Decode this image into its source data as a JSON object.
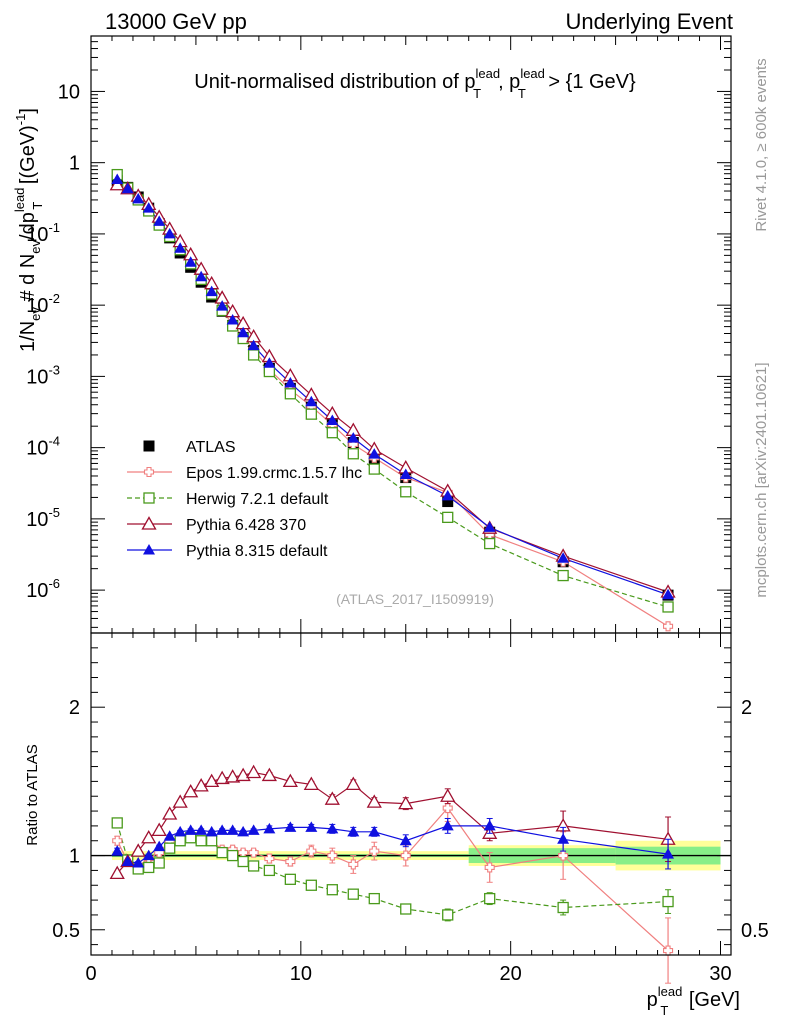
{
  "header": {
    "left": "13000 GeV pp",
    "right": "Underlying Event"
  },
  "side_notes": {
    "rivet": "Rivet 4.1.0, ≥ 600k events",
    "mcplots": "mcplots.cern.ch [arXiv:2401.10621]"
  },
  "chart_data": [
    {
      "type": "scatter",
      "panel": "main",
      "title_main": "Unit-normalised distribution of p",
      "title_sup1": "lead",
      "title_sub1": "T",
      "title_mid": ", p",
      "title_sup2": "lead",
      "title_sub2": "T",
      "title_end": " > {1 GeV}",
      "ylabel_a": "1/N",
      "ylabel_a_sub": "ev",
      "ylabel_b": " # d N",
      "ylabel_b_sub": "ev",
      "ylabel_c": "/dp",
      "ylabel_c_sup": "lead",
      "ylabel_c_sub": "T",
      "ylabel_d": " [(GeV)",
      "ylabel_d_sup": "-1",
      "ylabel_e": "]",
      "yscale": "log",
      "ylim": [
        2.5e-07,
        60
      ],
      "xlim": [
        0,
        30.5
      ],
      "yticks": [
        {
          "value": 1e-06,
          "base": "10",
          "exp": "-6"
        },
        {
          "value": 1e-05,
          "base": "10",
          "exp": "-5"
        },
        {
          "value": 0.0001,
          "base": "10",
          "exp": "-4"
        },
        {
          "value": 0.001,
          "base": "10",
          "exp": "-3"
        },
        {
          "value": 0.01,
          "base": "10",
          "exp": "-2"
        },
        {
          "value": 0.1,
          "base": "10",
          "exp": "-1"
        },
        {
          "value": 1,
          "base": "1",
          "exp": ""
        },
        {
          "value": 10,
          "base": "10",
          "exp": ""
        }
      ],
      "watermark": "(ATLAS_2017_I1509919)",
      "legend_position": "bottom-left",
      "x": [
        1.25,
        1.75,
        2.25,
        2.75,
        3.25,
        3.75,
        4.25,
        4.75,
        5.25,
        5.75,
        6.25,
        6.75,
        7.25,
        7.75,
        8.5,
        9.5,
        10.5,
        11.5,
        12.5,
        13.5,
        15.0,
        17.0,
        19.0,
        22.5,
        27.5
      ],
      "series": [
        {
          "name": "ATLAS",
          "marker": "square-filled",
          "color": "#000000",
          "values": [
            0.56,
            0.45,
            0.33,
            0.23,
            0.14,
            0.088,
            0.054,
            0.034,
            0.021,
            0.013,
            0.0082,
            0.0052,
            0.0035,
            0.0023,
            0.0013,
            0.00068,
            0.00037,
            0.00021,
            0.000118,
            7e-05,
            3.8e-05,
            1.75e-05,
            6.5e-06,
            2.5e-06,
            8.5e-07
          ]
        },
        {
          "name": "Epos 1.99.crmc.1.5.7 lhc",
          "marker": "cross-open",
          "color": "#f08080",
          "line": "solid",
          "values": [
            0.62,
            0.43,
            0.3,
            0.22,
            0.143,
            0.097,
            0.062,
            0.038,
            0.023,
            0.0145,
            0.0085,
            0.0054,
            0.0036,
            0.0024,
            0.00125,
            0.00065,
            0.00038,
            0.00021,
            0.000111,
            7.2e-05,
            3.8e-05,
            2.35e-05,
            6e-06,
            2.5e-06,
            3.1e-07
          ]
        },
        {
          "name": "Herwig 7.2.1 default",
          "marker": "square-open",
          "color": "#4a9a1c",
          "line": "dashed",
          "values": [
            0.68,
            0.44,
            0.3,
            0.21,
            0.133,
            0.092,
            0.06,
            0.038,
            0.023,
            0.0143,
            0.0084,
            0.0051,
            0.0034,
            0.002,
            0.00117,
            0.00057,
            0.000295,
            0.000162,
            8.2e-05,
            5e-05,
            2.4e-05,
            1.05e-05,
            4.5e-06,
            1.6e-06,
            5.8e-07
          ]
        },
        {
          "name": "Pythia 6.428 370",
          "marker": "triangle-open",
          "color": "#a01030",
          "line": "solid",
          "values": [
            0.49,
            0.43,
            0.34,
            0.26,
            0.172,
            0.117,
            0.078,
            0.051,
            0.032,
            0.02,
            0.0126,
            0.0081,
            0.0055,
            0.0036,
            0.0019,
            0.00102,
            0.00055,
            0.0003,
            0.000175,
            9.5e-05,
            5.2e-05,
            2.45e-05,
            7.4e-06,
            3e-06,
            9.4e-07
          ]
        },
        {
          "name": "Pythia 8.315 default",
          "marker": "triangle-filled",
          "color": "#1010e0",
          "line": "solid",
          "values": [
            0.58,
            0.43,
            0.31,
            0.23,
            0.15,
            0.1,
            0.063,
            0.04,
            0.025,
            0.0155,
            0.0097,
            0.0062,
            0.0041,
            0.0027,
            0.00153,
            0.00081,
            0.00044,
            0.00024,
            0.000136,
            8.1e-05,
            4.2e-05,
            2.1e-05,
            7.6e-06,
            2.8e-06,
            8.6e-07
          ]
        }
      ]
    },
    {
      "type": "scatter",
      "panel": "ratio",
      "ylabel": "Ratio to ATLAS",
      "xlabel_main": "p",
      "xlabel_sup": "lead",
      "xlabel_sub": "T",
      "xlabel_unit": " [GeV]",
      "xlim": [
        0,
        30.5
      ],
      "ylim": [
        0.33,
        2.5
      ],
      "xticks": [
        {
          "value": 0,
          "label": "0"
        },
        {
          "value": 10,
          "label": "10"
        },
        {
          "value": 20,
          "label": "20"
        },
        {
          "value": 30,
          "label": "30"
        }
      ],
      "yticks_left": [
        {
          "value": 0.5,
          "label": "0.5"
        },
        {
          "value": 1,
          "label": "1"
        },
        {
          "value": 2,
          "label": "2"
        }
      ],
      "yticks_right": [
        {
          "value": 0.5,
          "label": "0.5"
        },
        {
          "value": 2,
          "label": "2"
        }
      ],
      "x": [
        1.25,
        1.75,
        2.25,
        2.75,
        3.25,
        3.75,
        4.25,
        4.75,
        5.25,
        5.75,
        6.25,
        6.75,
        7.25,
        7.75,
        8.5,
        9.5,
        10.5,
        11.5,
        12.5,
        13.5,
        15.0,
        17.0,
        19.0,
        22.5,
        27.5
      ],
      "uncertainty_bands": {
        "edges": [
          1.0,
          18.0,
          25.0,
          30.0
        ],
        "stat_half_width": [
          0.01,
          0.05,
          0.06
        ],
        "total_half_width": [
          0.03,
          0.07,
          0.1
        ]
      },
      "series": [
        {
          "name": "Epos 1.99.crmc.1.5.7 lhc",
          "color": "#f08080",
          "values": [
            1.1,
            0.96,
            0.93,
            0.98,
            1.02,
            1.1,
            1.13,
            1.13,
            1.1,
            1.1,
            1.04,
            1.04,
            1.02,
            1.02,
            0.98,
            0.96,
            1.03,
            1.0,
            0.94,
            1.03,
            1.0,
            1.32,
            0.92,
            1.0,
            0.36
          ],
          "errors": [
            0.03,
            0.02,
            0.02,
            0.02,
            0.02,
            0.02,
            0.02,
            0.02,
            0.02,
            0.02,
            0.02,
            0.02,
            0.02,
            0.02,
            0.03,
            0.03,
            0.04,
            0.05,
            0.06,
            0.06,
            0.07,
            0.09,
            0.1,
            0.16,
            0.22
          ]
        },
        {
          "name": "Herwig 7.2.1 default",
          "color": "#4a9a1c",
          "values": [
            1.22,
            0.97,
            0.91,
            0.92,
            0.95,
            1.05,
            1.1,
            1.12,
            1.1,
            1.1,
            1.02,
            1.0,
            0.96,
            0.93,
            0.9,
            0.84,
            0.8,
            0.77,
            0.74,
            0.71,
            0.64,
            0.6,
            0.71,
            0.65,
            0.69
          ],
          "errors": [
            0.02,
            0.01,
            0.01,
            0.01,
            0.01,
            0.01,
            0.01,
            0.01,
            0.01,
            0.01,
            0.01,
            0.01,
            0.01,
            0.01,
            0.01,
            0.01,
            0.02,
            0.02,
            0.02,
            0.03,
            0.03,
            0.04,
            0.04,
            0.05,
            0.08
          ]
        },
        {
          "name": "Pythia 6.428 370",
          "color": "#a01030",
          "values": [
            0.88,
            0.96,
            1.03,
            1.12,
            1.17,
            1.28,
            1.36,
            1.43,
            1.47,
            1.5,
            1.52,
            1.53,
            1.54,
            1.56,
            1.54,
            1.5,
            1.48,
            1.38,
            1.48,
            1.36,
            1.35,
            1.4,
            1.15,
            1.2,
            1.11
          ],
          "errors": [
            0.01,
            0.01,
            0.01,
            0.01,
            0.01,
            0.01,
            0.01,
            0.01,
            0.01,
            0.01,
            0.01,
            0.01,
            0.01,
            0.01,
            0.02,
            0.02,
            0.02,
            0.03,
            0.03,
            0.03,
            0.04,
            0.05,
            0.05,
            0.1,
            0.15
          ]
        },
        {
          "name": "Pythia 8.315 default",
          "color": "#1010e0",
          "values": [
            1.03,
            0.96,
            0.95,
            1.0,
            1.06,
            1.13,
            1.16,
            1.17,
            1.17,
            1.16,
            1.17,
            1.17,
            1.16,
            1.17,
            1.18,
            1.19,
            1.19,
            1.18,
            1.16,
            1.16,
            1.1,
            1.2,
            1.2,
            1.11,
            1.01
          ],
          "errors": [
            0.02,
            0.01,
            0.01,
            0.01,
            0.01,
            0.01,
            0.01,
            0.01,
            0.01,
            0.01,
            0.01,
            0.01,
            0.01,
            0.01,
            0.02,
            0.02,
            0.02,
            0.03,
            0.03,
            0.03,
            0.04,
            0.05,
            0.05,
            0.08,
            0.1
          ]
        }
      ]
    }
  ]
}
